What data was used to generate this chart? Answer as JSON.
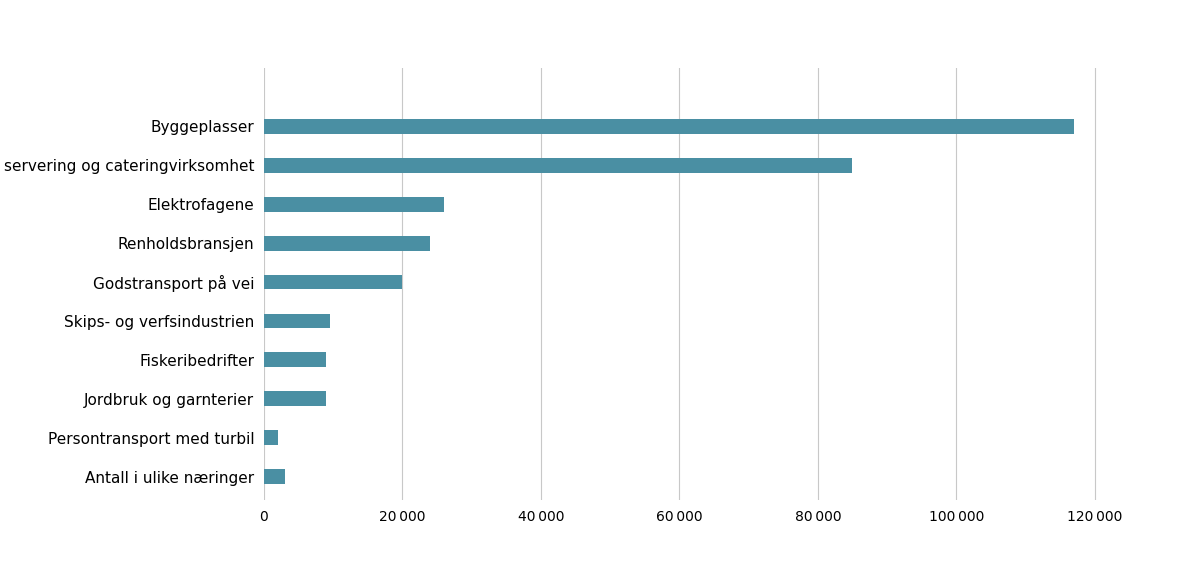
{
  "categories": [
    "Antall i ulike næringer",
    "Persontransport med turbil",
    "Jordbruk og garnterier",
    "Fiskeribedrifter",
    "Skips- og verfsindustrien",
    "Godstransport på vei",
    "Renholdsbransjen",
    "Elektrofagene",
    "Overnatting, servering og cateringvirksomhet",
    "Byggeplasser"
  ],
  "values": [
    3000,
    2000,
    9000,
    9000,
    9500,
    20000,
    24000,
    26000,
    85000,
    117000
  ],
  "bar_color": "#4a8fa3",
  "xlim": [
    0,
    130000
  ],
  "xticks": [
    0,
    20000,
    40000,
    60000,
    80000,
    100000,
    120000
  ],
  "background_color": "#ffffff",
  "grid_color": "#c8c8c8",
  "bar_height": 0.38,
  "figsize": [
    12.0,
    5.68
  ],
  "dpi": 100,
  "label_fontsize": 11,
  "tick_fontsize": 10
}
